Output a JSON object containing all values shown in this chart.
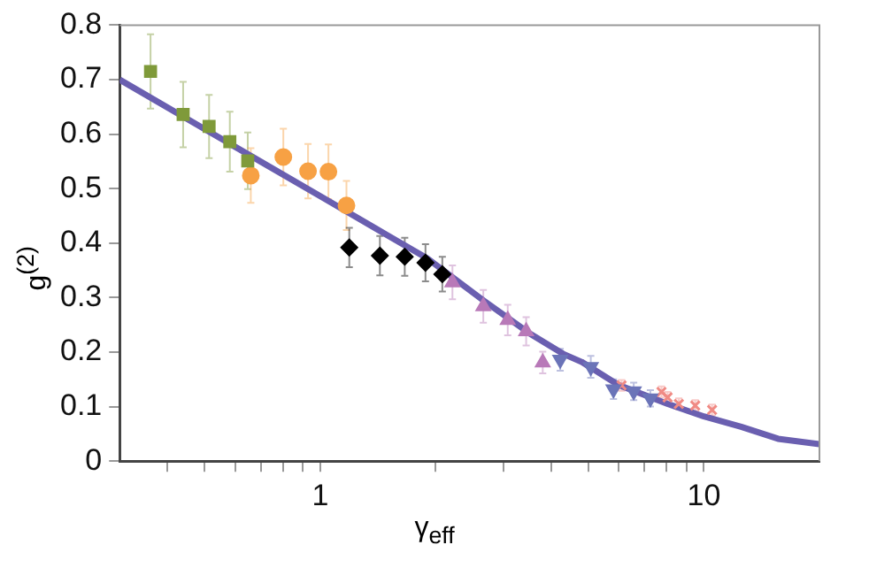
{
  "chart_data": {
    "type": "scatter",
    "xlabel": "γ$_{eff}$",
    "ylabel": "g$^{(2)}$",
    "log": "x",
    "grid": false,
    "legend": false,
    "xlim": [
      0.3,
      20
    ],
    "ylim": [
      0,
      0.8
    ],
    "xticks": [
      {
        "value": 0.4,
        "label": null
      },
      {
        "value": 0.5,
        "label": null
      },
      {
        "value": 0.6,
        "label": null
      },
      {
        "value": 0.7,
        "label": null
      },
      {
        "value": 0.8,
        "label": null
      },
      {
        "value": 0.9,
        "label": null
      },
      1,
      {
        "value": 2,
        "label": null
      },
      {
        "value": 3,
        "label": null
      },
      {
        "value": 4,
        "label": null
      },
      {
        "value": 5,
        "label": null
      },
      {
        "value": 6,
        "label": null
      },
      {
        "value": 7,
        "label": null
      },
      {
        "value": 8,
        "label": null
      },
      {
        "value": 9,
        "label": null
      },
      10
    ],
    "yticks": [
      0,
      0.1,
      0.2,
      0.3,
      0.4,
      0.5,
      0.6,
      0.7,
      0.8
    ],
    "series": [
      {
        "type": "line",
        "color": "#6a5fb0",
        "marker": "none",
        "x": [
          0.3,
          0.5,
          1.0,
          1.5,
          1.9,
          2.66,
          3.5,
          4.29,
          4.8,
          5.98,
          8.04,
          10,
          12.5,
          15.6,
          20
        ],
        "values": [
          0.7,
          0.609,
          0.486,
          0.414,
          0.372,
          0.295,
          0.235,
          0.197,
          0.182,
          0.14,
          0.105,
          0.082,
          0.063,
          0.041,
          0.031
        ]
      },
      {
        "type": "scatter",
        "color": "#7f9a3a",
        "marker": "square",
        "x": [
          0.361,
          0.439,
          0.513,
          0.581,
          0.647
        ],
        "values": [
          0.715,
          0.636,
          0.614,
          0.586,
          0.551
        ],
        "errors": [
          0.068,
          0.06,
          0.058,
          0.055,
          0.052
        ]
      },
      {
        "type": "scatter",
        "color": "#f7a144",
        "marker": "circle",
        "x": [
          0.659,
          0.801,
          0.929,
          1.05,
          1.17
        ],
        "values": [
          0.524,
          0.558,
          0.532,
          0.531,
          0.469
        ],
        "errors": [
          0.05,
          0.052,
          0.05,
          0.05,
          0.045
        ]
      },
      {
        "type": "scatter",
        "color": "#000000",
        "marker": "diamond",
        "x": [
          1.19,
          1.43,
          1.66,
          1.88,
          2.08
        ],
        "values": [
          0.392,
          0.377,
          0.375,
          0.364,
          0.343
        ],
        "errors": [
          0.036,
          0.036,
          0.035,
          0.034,
          0.032
        ]
      },
      {
        "type": "scatter",
        "color": "#b879b8",
        "marker": "triangle",
        "x": [
          2.21,
          2.66,
          3.08,
          3.44,
          3.8
        ],
        "values": [
          0.328,
          0.284,
          0.259,
          0.238,
          0.181
        ],
        "errors": [
          0.031,
          0.03,
          0.028,
          0.026,
          0.02
        ]
      },
      {
        "type": "scatter",
        "color": "#6b74b8",
        "marker": "triangle-down",
        "x": [
          4.22,
          5.07,
          5.81,
          6.56,
          7.25
        ],
        "values": [
          0.186,
          0.173,
          0.132,
          0.128,
          0.115
        ],
        "errors": [
          0.02,
          0.02,
          0.018,
          0.016,
          0.015
        ]
      },
      {
        "type": "scatter",
        "color": "#f08a84",
        "marker": "cross",
        "x": [
          6.1,
          7.75,
          8.04,
          8.6,
          9.49,
          10.5
        ],
        "values": [
          0.139,
          0.127,
          0.117,
          0.105,
          0.102,
          0.094
        ],
        "errors": [
          0.01,
          0.01,
          0.01,
          0.01,
          0.01,
          0.01
        ]
      }
    ]
  }
}
